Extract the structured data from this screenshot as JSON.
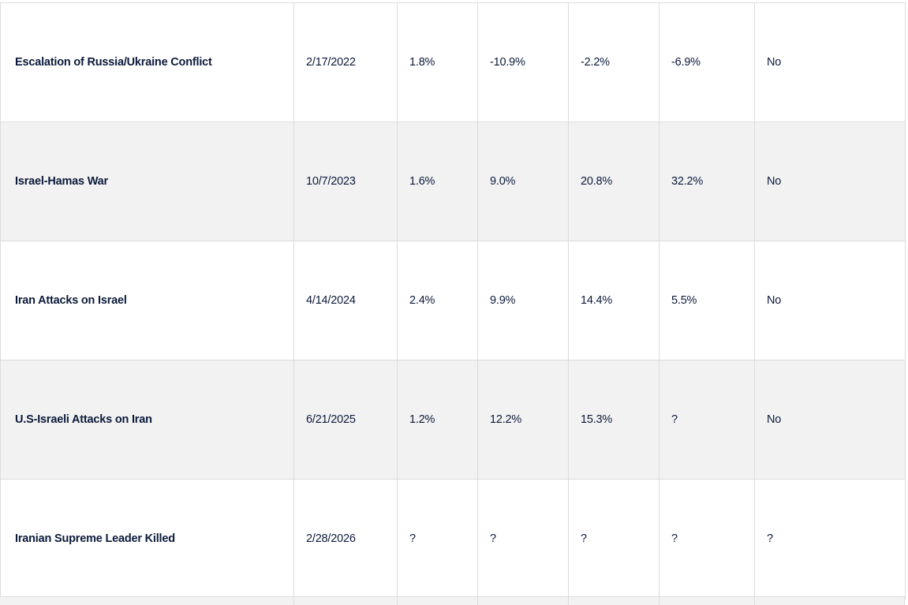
{
  "rows": [
    {
      "event": "Escalation of Russia/Ukraine Conflict",
      "date": "2/17/2022",
      "c1": "1.8%",
      "c2": "-10.9%",
      "c3": "-2.2%",
      "c4": "-6.9%",
      "c5": "No"
    },
    {
      "event": "Israel-Hamas War",
      "date": "10/7/2023",
      "c1": "1.6%",
      "c2": "9.0%",
      "c3": "20.8%",
      "c4": "32.2%",
      "c5": "No"
    },
    {
      "event": "Iran Attacks on Israel",
      "date": "4/14/2024",
      "c1": "2.4%",
      "c2": "9.9%",
      "c3": "14.4%",
      "c4": "5.5%",
      "c5": "No"
    },
    {
      "event": "U.S-Israeli Attacks on Iran",
      "date": "6/21/2025",
      "c1": "1.2%",
      "c2": "12.2%",
      "c3": "15.3%",
      "c4": "?",
      "c5": "No"
    },
    {
      "event": "Iranian Supreme Leader Killed",
      "date": "2/28/2026",
      "c1": "?",
      "c2": "?",
      "c3": "?",
      "c4": "?",
      "c5": "?"
    }
  ]
}
